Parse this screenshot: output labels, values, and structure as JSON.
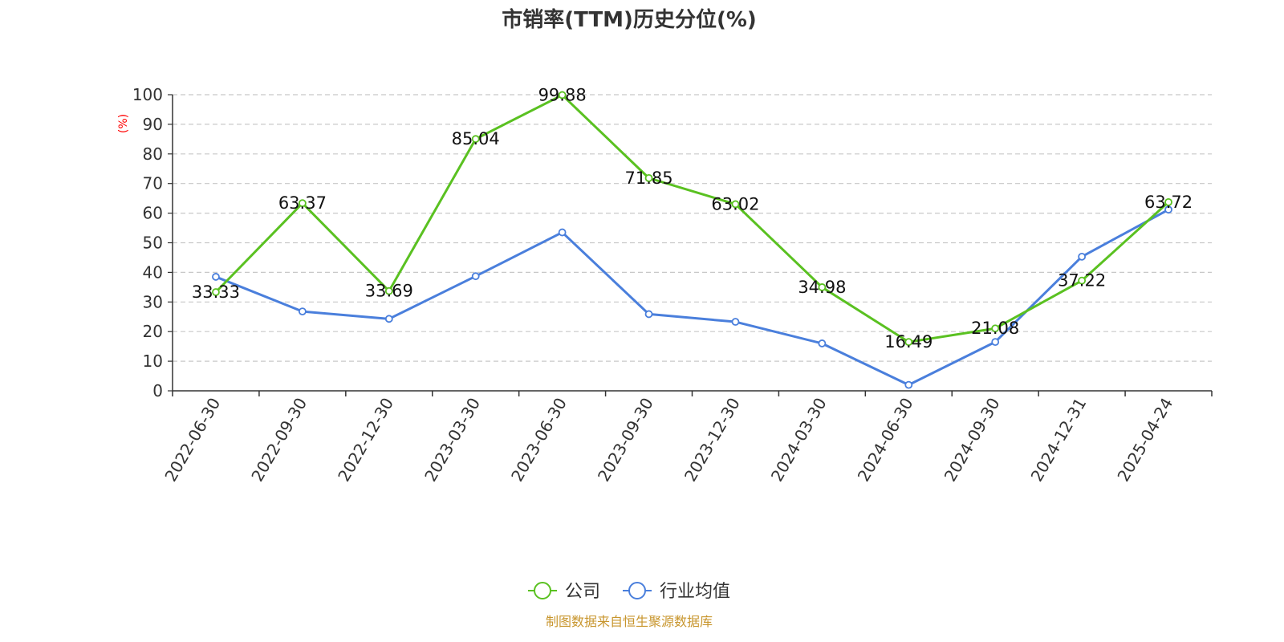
{
  "chart_data": {
    "type": "line",
    "title": "市销率(TTM)历史分位(%)",
    "ylabel": "(%)",
    "xlabel": "",
    "ylim": [
      0,
      100
    ],
    "yticks": [
      0,
      10,
      20,
      30,
      40,
      50,
      60,
      70,
      80,
      90,
      100
    ],
    "categories": [
      "2022-06-30",
      "2022-09-30",
      "2022-12-30",
      "2023-03-30",
      "2023-06-30",
      "2023-09-30",
      "2023-12-30",
      "2024-03-30",
      "2024-06-30",
      "2024-09-30",
      "2024-12-31",
      "2025-04-24"
    ],
    "series": [
      {
        "name": "公司",
        "color": "#5ac121",
        "values": [
          33.33,
          63.37,
          33.69,
          85.04,
          99.88,
          71.85,
          63.02,
          34.98,
          16.49,
          21.08,
          37.22,
          63.72
        ],
        "labels": [
          "33.33",
          "63.37",
          "33.69",
          "85.04",
          "99.88",
          "71.85",
          "63.02",
          "34.98",
          "16.49",
          "21.08",
          "37.22",
          "63.72"
        ]
      },
      {
        "name": "行业均值",
        "color": "#4a7fdc",
        "values": [
          38.5,
          26.8,
          24.3,
          38.7,
          53.5,
          25.9,
          23.3,
          16.0,
          2.0,
          16.5,
          45.3,
          61.2
        ]
      }
    ],
    "grid": true,
    "legend_position": "bottom-center"
  },
  "source": "制图数据来自恒生聚源数据库"
}
